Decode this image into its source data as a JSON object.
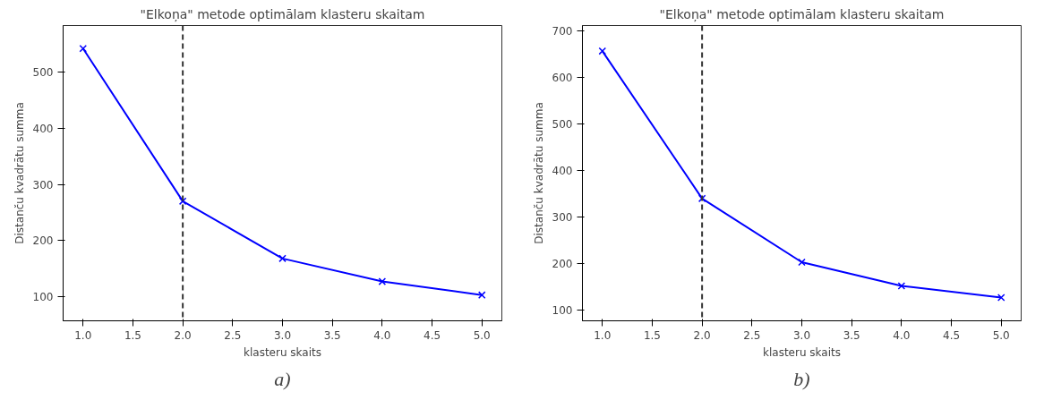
{
  "chart_data": [
    {
      "type": "line",
      "title": "\"Elkoņa\" metode optimālam klasteru skaitam",
      "xlabel": "klasteru skaits",
      "ylabel": "Distanču kvadrātu summa",
      "x": [
        1,
        2,
        3,
        4,
        5
      ],
      "series": [
        {
          "color": "#0000ff",
          "values": [
            542,
            270,
            168,
            127,
            103
          ],
          "marker": "cross",
          "line_style": "solid"
        }
      ],
      "ref_lines": [
        {
          "axis": "x",
          "value": 2,
          "color": "#333333",
          "line_style": "dashed"
        }
      ],
      "xlim": [
        0.8,
        5.2
      ],
      "xticks": [
        {
          "value": 1,
          "label": "1.0"
        },
        {
          "value": 1.5,
          "label": "1.5"
        },
        {
          "value": 2,
          "label": "2.0"
        },
        {
          "value": 2.5,
          "label": "2.5"
        },
        {
          "value": 3,
          "label": "3.0"
        },
        {
          "value": 3.5,
          "label": "3.5"
        },
        {
          "value": 4,
          "label": "4.0"
        },
        {
          "value": 4.5,
          "label": "4.5"
        },
        {
          "value": 5,
          "label": "5.0"
        }
      ],
      "ylim": [
        57,
        583
      ],
      "yticks": [
        100,
        200,
        300,
        400,
        500
      ],
      "annotations": [
        "a)"
      ]
    },
    {
      "type": "line",
      "title": "\"Elkoņa\" metode optimālam klasteru skaitam",
      "xlabel": "klasteru skaits",
      "ylabel": "Distanču kvadrātu summa",
      "x": [
        1,
        2,
        3,
        4,
        5
      ],
      "series": [
        {
          "color": "#0000ff",
          "values": [
            657,
            340,
            203,
            152,
            127
          ],
          "marker": "cross",
          "line_style": "solid"
        }
      ],
      "ref_lines": [
        {
          "axis": "x",
          "value": 2,
          "color": "#333333",
          "line_style": "dashed"
        }
      ],
      "xlim": [
        0.8,
        5.2
      ],
      "xticks": [
        {
          "value": 1,
          "label": "1.0"
        },
        {
          "value": 1.5,
          "label": "1.5"
        },
        {
          "value": 2,
          "label": "2.0"
        },
        {
          "value": 2.5,
          "label": "2.5"
        },
        {
          "value": 3,
          "label": "3.0"
        },
        {
          "value": 3.5,
          "label": "3.5"
        },
        {
          "value": 4,
          "label": "4.0"
        },
        {
          "value": 4.5,
          "label": "4.5"
        },
        {
          "value": 5,
          "label": "5.0"
        }
      ],
      "ylim": [
        77,
        712
      ],
      "yticks": [
        100,
        200,
        300,
        400,
        500,
        600,
        700
      ],
      "annotations": [
        "b)"
      ]
    }
  ]
}
